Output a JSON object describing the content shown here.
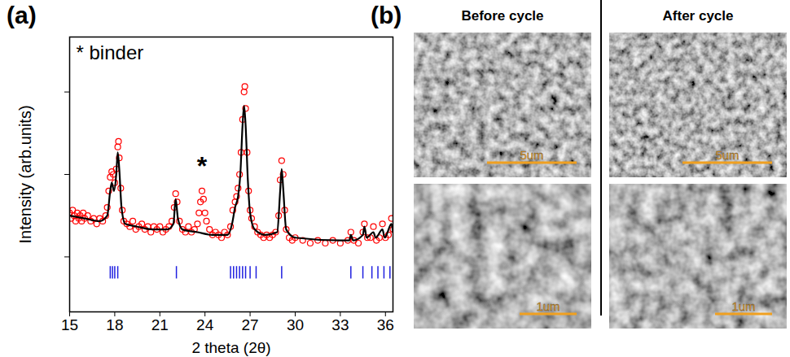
{
  "chart_data": {
    "type": "scatter",
    "x_label": "2 theta (2θ)",
    "y_label": "Intensity (arb.units)",
    "xlim": [
      15,
      36.5
    ],
    "xticks": [
      15,
      18,
      21,
      24,
      27,
      30,
      33,
      36
    ],
    "ylim": [
      0,
      100
    ],
    "yticks": [
      20,
      50,
      80
    ],
    "tick_labels": "x",
    "annotations": [
      {
        "text": "*",
        "x": 23.8,
        "y": 50
      }
    ],
    "annotation_key": "* binder",
    "series": [
      {
        "type": "scatter",
        "color": "#ff0000",
        "marker": "circle",
        "x": [
          15.0,
          15.1,
          15.2,
          15.3,
          15.4,
          15.5,
          15.6,
          15.7,
          15.8,
          15.9,
          16.0,
          16.2,
          16.4,
          16.6,
          16.8,
          17.0,
          17.2,
          17.4,
          17.5,
          17.6,
          17.7,
          17.8,
          17.9,
          18.0,
          18.1,
          18.2,
          18.25,
          18.3,
          18.4,
          18.5,
          18.6,
          18.8,
          19.0,
          19.2,
          19.4,
          19.6,
          19.8,
          20.0,
          20.2,
          20.4,
          20.6,
          20.8,
          21.0,
          21.2,
          21.4,
          21.6,
          21.8,
          21.95,
          22.05,
          22.15,
          22.3,
          22.5,
          22.7,
          22.9,
          23.1,
          23.3,
          23.5,
          23.6,
          23.7,
          23.8,
          23.9,
          24.0,
          24.1,
          24.3,
          24.5,
          24.7,
          24.9,
          25.1,
          25.3,
          25.5,
          25.7,
          25.85,
          26.0,
          26.1,
          26.2,
          26.3,
          26.4,
          26.5,
          26.6,
          26.65,
          26.7,
          26.8,
          26.9,
          27.0,
          27.1,
          27.3,
          27.5,
          27.7,
          27.9,
          28.1,
          28.3,
          28.5,
          28.7,
          28.9,
          29.0,
          29.1,
          29.2,
          29.3,
          29.4,
          29.6,
          29.8,
          30.0,
          30.5,
          31.0,
          31.5,
          32.0,
          32.5,
          33.0,
          33.5,
          33.7,
          33.9,
          34.2,
          34.5,
          34.6,
          34.8,
          35.0,
          35.2,
          35.4,
          35.6,
          35.8,
          36.0,
          36.2,
          36.4,
          36.5
        ],
        "values": [
          36,
          34,
          37,
          35,
          33,
          36,
          34,
          35,
          33,
          36,
          34,
          35,
          33,
          34,
          32,
          34,
          33,
          35,
          38,
          44,
          49,
          51,
          50,
          47,
          52,
          60,
          62,
          56,
          45,
          37,
          33,
          32,
          31,
          33,
          30,
          31,
          32,
          30,
          31,
          29,
          31,
          30,
          31,
          29,
          30,
          31,
          33,
          38,
          43,
          40,
          33,
          30,
          29,
          31,
          29,
          30,
          32,
          36,
          40,
          44,
          41,
          36,
          33,
          30,
          28,
          29,
          28,
          27,
          29,
          28,
          31,
          37,
          40,
          42,
          45,
          50,
          58,
          70,
          80,
          82,
          74,
          58,
          44,
          37,
          34,
          31,
          29,
          28,
          27,
          28,
          27,
          28,
          29,
          35,
          48,
          55,
          50,
          37,
          30,
          27,
          26,
          27,
          26,
          25,
          26,
          25,
          26,
          25,
          26,
          29,
          26,
          25,
          29,
          32,
          27,
          27,
          31,
          26,
          27,
          32,
          27,
          28,
          34,
          30
        ]
      },
      {
        "type": "line",
        "color": "#000000",
        "line_style": "solid",
        "x": [
          15,
          16,
          17,
          17.5,
          17.7,
          17.8,
          17.95,
          18.1,
          18.2,
          18.3,
          18.45,
          18.7,
          19.5,
          20.5,
          21.5,
          21.9,
          22.05,
          22.2,
          22.5,
          23.5,
          24.5,
          25.5,
          25.8,
          26.0,
          26.2,
          26.35,
          26.5,
          26.6,
          26.7,
          26.85,
          27.0,
          27.3,
          28,
          28.8,
          29.0,
          29.1,
          29.2,
          29.4,
          30,
          33,
          33.6,
          33.7,
          33.85,
          34.5,
          34.6,
          34.75,
          35.2,
          35.35,
          35.8,
          35.95,
          36.4,
          36.5
        ],
        "values": [
          35,
          34,
          33,
          35,
          44,
          47,
          44,
          50,
          58,
          52,
          38,
          32,
          31,
          30,
          30,
          32,
          41,
          34,
          30,
          29,
          28,
          28,
          32,
          38,
          42,
          50,
          68,
          75,
          68,
          48,
          36,
          30,
          28,
          29,
          44,
          52,
          45,
          30,
          27,
          26,
          26,
          28,
          26,
          28,
          31,
          27,
          29,
          27,
          30,
          27,
          32,
          29
        ]
      },
      {
        "type": "tick",
        "color": "#2020e0",
        "x": [
          17.7,
          17.85,
          18.0,
          18.2,
          22.1,
          25.7,
          25.9,
          26.1,
          26.3,
          26.5,
          26.7,
          27.0,
          27.4,
          29.1,
          33.7,
          34.5,
          35.1,
          35.5,
          35.9,
          36.3
        ]
      }
    ]
  },
  "panel_labels": [
    "(a)",
    "(b)"
  ],
  "sem_panels": {
    "columns": [
      {
        "title": "Before cycle",
        "scale_bars": [
          "5um",
          "1um"
        ]
      },
      {
        "title": "After cycle",
        "scale_bars": [
          "5um",
          "1um"
        ]
      }
    ]
  }
}
